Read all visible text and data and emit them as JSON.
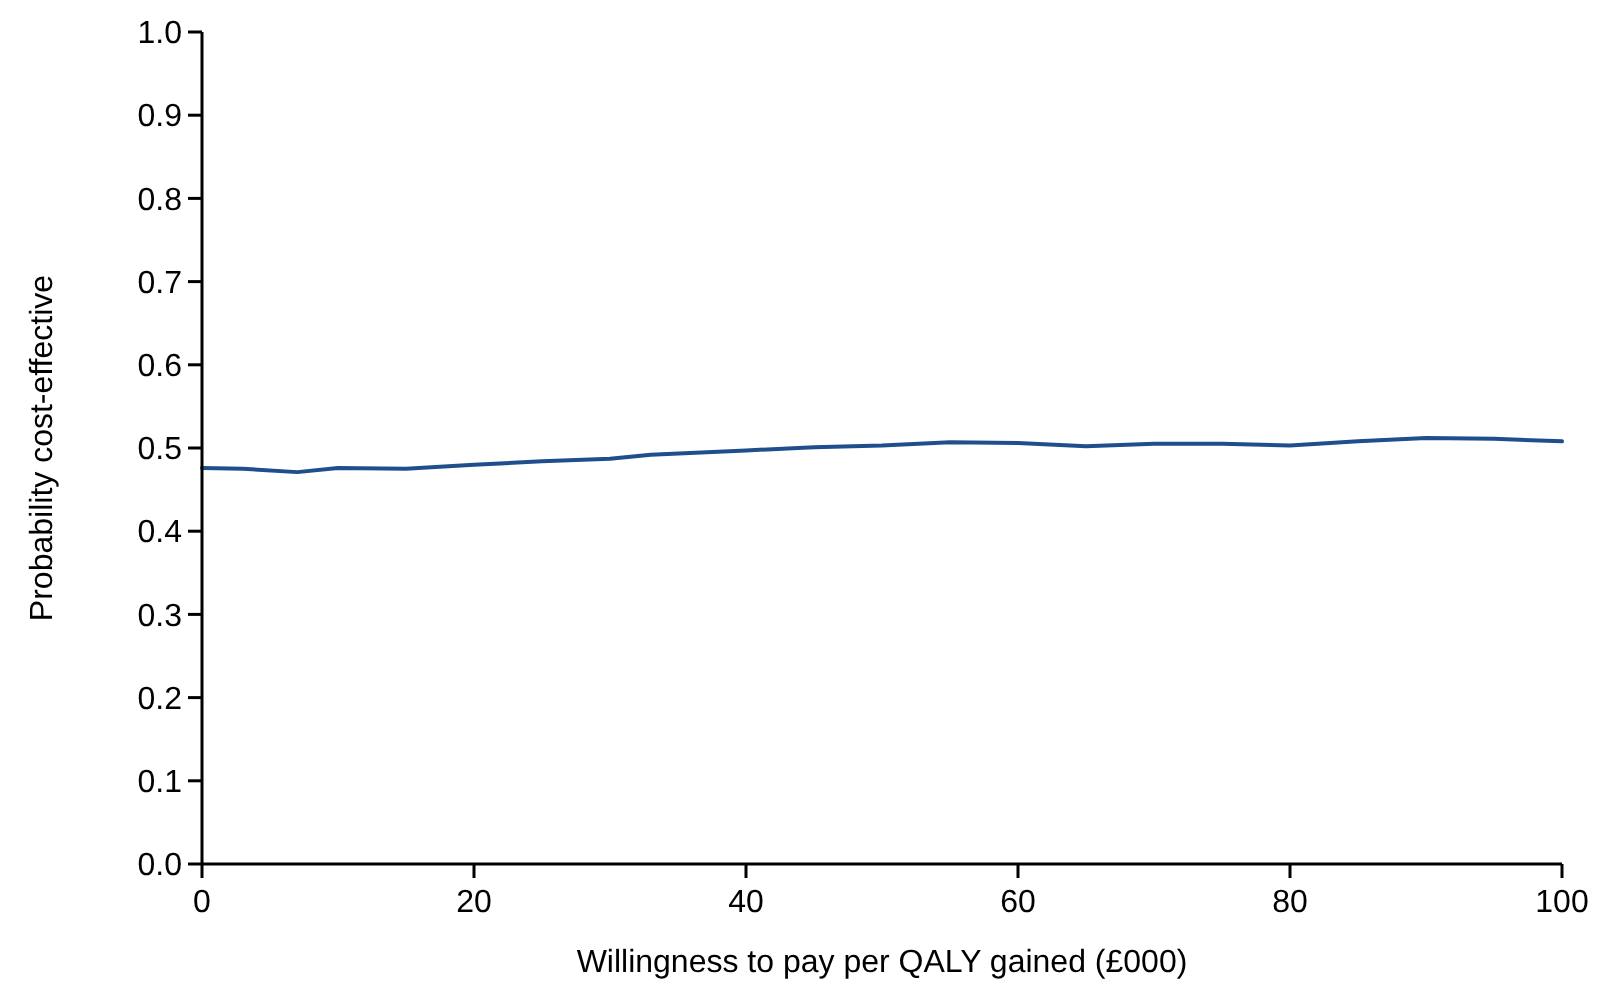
{
  "chart_data": {
    "type": "line",
    "xlabel": "Willingness to pay per QALY gained (£000)",
    "ylabel": "Probability cost-effective",
    "x": [
      0,
      3,
      7,
      10,
      15,
      20,
      25,
      30,
      33,
      40,
      45,
      50,
      55,
      60,
      65,
      70,
      75,
      80,
      85,
      90,
      95,
      100
    ],
    "series": [
      {
        "color": "#1f4e8c",
        "values": [
          0.476,
          0.475,
          0.471,
          0.476,
          0.475,
          0.48,
          0.484,
          0.487,
          0.492,
          0.497,
          0.501,
          0.503,
          0.507,
          0.506,
          0.502,
          0.505,
          0.505,
          0.503,
          0.508,
          0.512,
          0.511,
          0.508
        ]
      }
    ],
    "xlim": [
      0,
      100
    ],
    "xticks": [
      0,
      20,
      40,
      60,
      80,
      100
    ],
    "ylim": [
      0,
      1
    ],
    "yticks": [
      {
        "value": 0,
        "label": "0.0"
      },
      0.1,
      0.2,
      0.3,
      0.4,
      0.5,
      0.6,
      0.7,
      0.8,
      0.9,
      {
        "value": 1,
        "label": "1.0"
      }
    ],
    "grid": false,
    "marker": "none",
    "line_style": "solid"
  }
}
